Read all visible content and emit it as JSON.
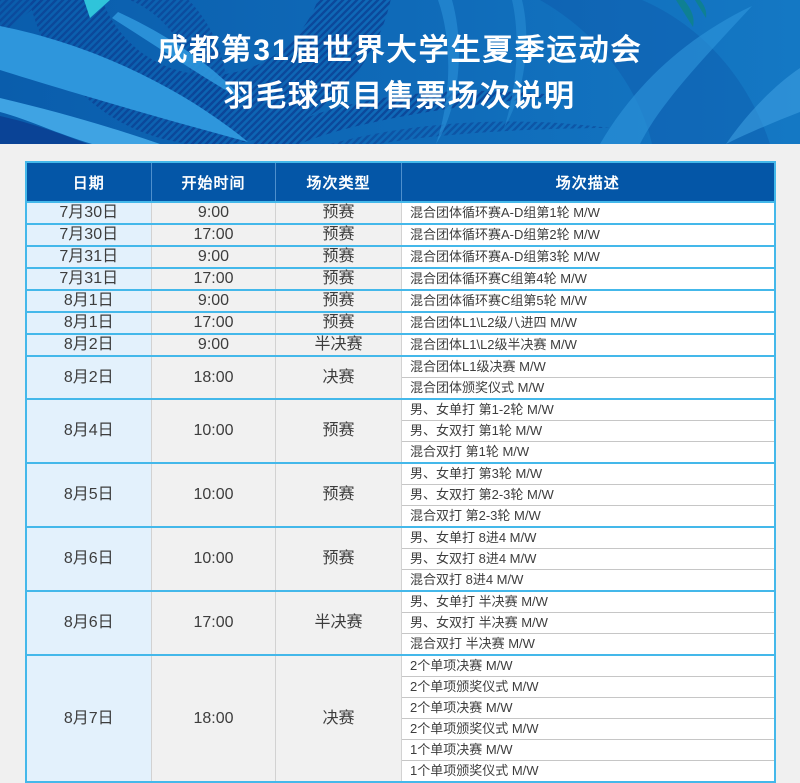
{
  "banner": {
    "title_line1": "成都第31届世界大学生夏季运动会",
    "title_line2": "羽毛球项目售票场次说明"
  },
  "table": {
    "headers": [
      "日期",
      "开始时间",
      "场次类型",
      "场次描述"
    ],
    "groups": [
      {
        "date": "7月30日",
        "time": "9:00",
        "type": "预赛",
        "descriptions": [
          "混合团体循环赛A-D组第1轮 M/W"
        ]
      },
      {
        "date": "7月30日",
        "time": "17:00",
        "type": "预赛",
        "descriptions": [
          "混合团体循环赛A-D组第2轮 M/W"
        ]
      },
      {
        "date": "7月31日",
        "time": "9:00",
        "type": "预赛",
        "descriptions": [
          "混合团体循环赛A-D组第3轮 M/W"
        ]
      },
      {
        "date": "7月31日",
        "time": "17:00",
        "type": "预赛",
        "descriptions": [
          "混合团体循环赛C组第4轮 M/W"
        ]
      },
      {
        "date": "8月1日",
        "time": "9:00",
        "type": "预赛",
        "descriptions": [
          "混合团体循环赛C组第5轮 M/W"
        ]
      },
      {
        "date": "8月1日",
        "time": "17:00",
        "type": "预赛",
        "descriptions": [
          "混合团体L1\\L2级八进四 M/W"
        ]
      },
      {
        "date": "8月2日",
        "time": "9:00",
        "type": "半决赛",
        "descriptions": [
          "混合团体L1\\L2级半决赛 M/W"
        ]
      },
      {
        "date": "8月2日",
        "time": "18:00",
        "type": "决赛",
        "descriptions": [
          "混合团体L1级决赛 M/W",
          "混合团体颁奖仪式 M/W"
        ]
      },
      {
        "date": "8月4日",
        "time": "10:00",
        "type": "预赛",
        "descriptions": [
          "男、女单打 第1-2轮 M/W",
          "男、女双打 第1轮 M/W",
          "混合双打 第1轮 M/W"
        ]
      },
      {
        "date": "8月5日",
        "time": "10:00",
        "type": "预赛",
        "descriptions": [
          "男、女单打 第3轮 M/W",
          "男、女双打 第2-3轮 M/W",
          "混合双打 第2-3轮 M/W"
        ]
      },
      {
        "date": "8月6日",
        "time": "10:00",
        "type": "预赛",
        "descriptions": [
          "男、女单打 8进4 M/W",
          "男、女双打 8进4 M/W",
          "混合双打 8进4 M/W"
        ]
      },
      {
        "date": "8月6日",
        "time": "17:00",
        "type": "半决赛",
        "descriptions": [
          "男、女单打 半决赛 M/W",
          "男、女双打 半决赛 M/W",
          "混合双打 半决赛 M/W"
        ]
      },
      {
        "date": "8月7日",
        "time": "18:00",
        "type": "决赛",
        "descriptions": [
          "2个单项决赛  M/W",
          "2个单项颁奖仪式  M/W",
          "2个单项决赛 M/W",
          "2个单项颁奖仪式 M/W",
          "1个单项决赛 M/W",
          "1个单项颁奖仪式 M/W"
        ]
      }
    ]
  },
  "colors": {
    "page_bg": "#f0f0f0",
    "header_blue": "#0456a7",
    "accent_cyan": "#44b8ea",
    "date_cell_bg": "#e3f1fc",
    "neutral_cell_bg": "#f1f1f1",
    "desc_cell_bg": "#ffffff",
    "grid_gray": "#d2d2d2",
    "sub_divider": "#c6c6c6",
    "header_divider": "#4e8fcd",
    "text_dark": "#3d3d3d",
    "title_text": "#ffffff",
    "banner_base_left": "#0a5dac",
    "banner_base_right": "#1478c4",
    "banner_wing_light": "#2e96dc",
    "banner_wing_lighter": "#3fa3e3",
    "banner_swirl_dark": "#0a4094",
    "banner_teal": "#2fc4da",
    "banner_teal_dark": "#0e8093"
  }
}
